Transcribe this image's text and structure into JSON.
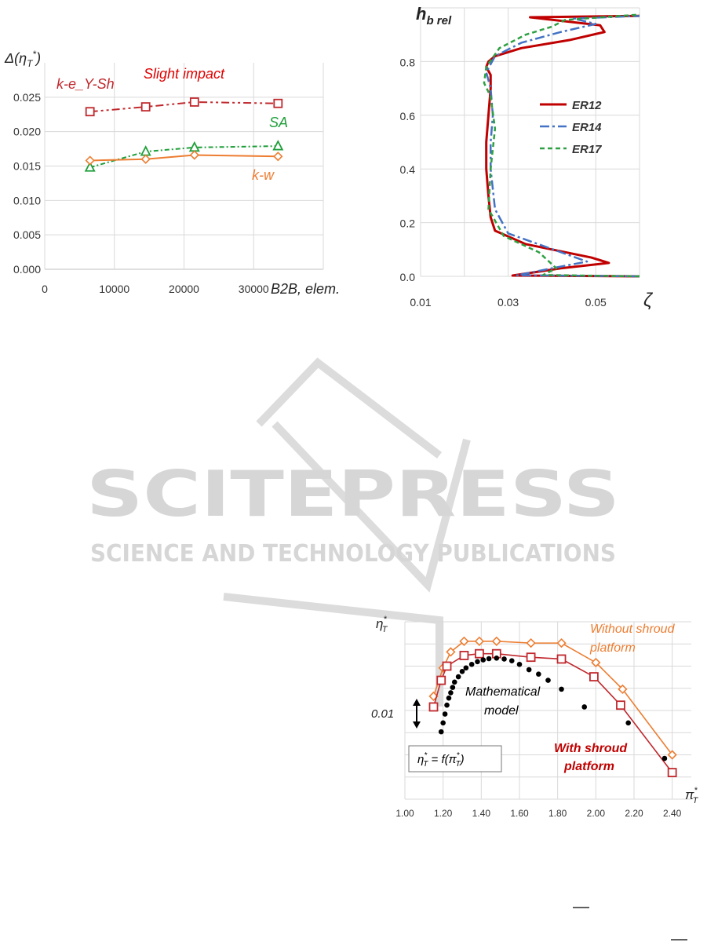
{
  "watermark": {
    "word": "SCITEPRESS",
    "tagline": "SCIENCE AND TECHNOLOGY PUBLICATIONS",
    "logo_icon": "book-icon"
  },
  "chart_data": [
    {
      "id": "mesh",
      "type": "line",
      "title": "",
      "ylabel": "Δ(η_T*)",
      "xlabel": "B2B, elem.",
      "xlim": [
        0,
        40000
      ],
      "ylim": [
        0,
        0.03
      ],
      "xticks": [
        "0",
        "10000",
        "20000",
        "30000"
      ],
      "yticks": [
        "0.000",
        "0.005",
        "0.010",
        "0.015",
        "0.020",
        "0.025"
      ],
      "grid": true,
      "series": [
        {
          "name": "k-e_Y-Sh",
          "color": "#c0282d",
          "dash": "10 4 3 4 3 4",
          "marker": "square",
          "x": [
            6500,
            14500,
            21500,
            33500
          ],
          "values": [
            0.0229,
            0.0236,
            0.0243,
            0.0241
          ]
        },
        {
          "name": "SA",
          "color": "#1f9e3a",
          "dash": "6 3 2 3",
          "marker": "triangle",
          "x": [
            6500,
            14500,
            21500,
            33500
          ],
          "values": [
            0.0148,
            0.0171,
            0.0177,
            0.0179
          ]
        },
        {
          "name": "k-w",
          "color": "#ed7d31",
          "dash": "",
          "marker": "diamond",
          "x": [
            6500,
            14500,
            21500,
            33500
          ],
          "values": [
            0.0158,
            0.016,
            0.0166,
            0.0164
          ]
        }
      ],
      "annotations": [
        {
          "text": "Slight impact",
          "color": "#e00000"
        },
        {
          "text": "k-e_Y-Sh",
          "color": "#c0282d"
        },
        {
          "text": "SA",
          "color": "#1f9e3a"
        },
        {
          "text": "k-w",
          "color": "#ed7d31"
        }
      ]
    },
    {
      "id": "profile",
      "type": "line",
      "title": "",
      "ylabel": "h_b rel",
      "xlabel": "ζ",
      "xlim": [
        0.01,
        0.06
      ],
      "ylim": [
        0,
        1
      ],
      "xticks": [
        "0.01",
        "0.03",
        "0.05"
      ],
      "yticks": [
        "0.0",
        "0.2",
        "0.4",
        "0.6",
        "0.8"
      ],
      "grid": true,
      "legend": "center-right",
      "series": [
        {
          "name": "ER12",
          "color": "#c00000",
          "dash": "",
          "x": [
            0.06,
            0.031,
            0.042,
            0.053,
            0.049,
            0.034,
            0.027,
            0.026,
            0.0255,
            0.025,
            0.025,
            0.0255,
            0.026,
            0.026,
            0.025,
            0.0255,
            0.027,
            0.033,
            0.044,
            0.052,
            0.051,
            0.035,
            0.06
          ],
          "y": [
            0.0,
            0.003,
            0.03,
            0.05,
            0.07,
            0.12,
            0.17,
            0.22,
            0.3,
            0.4,
            0.5,
            0.6,
            0.7,
            0.75,
            0.78,
            0.8,
            0.82,
            0.85,
            0.88,
            0.91,
            0.935,
            0.965,
            0.97
          ]
        },
        {
          "name": "ER14",
          "color": "#4472c4",
          "dash": "12 4 3 4",
          "x": [
            0.06,
            0.032,
            0.04,
            0.048,
            0.042,
            0.03,
            0.027,
            0.026,
            0.026,
            0.0265,
            0.026,
            0.025,
            0.027,
            0.033,
            0.042,
            0.05,
            0.045,
            0.06
          ],
          "y": [
            0.0,
            0.004,
            0.03,
            0.055,
            0.09,
            0.16,
            0.25,
            0.4,
            0.5,
            0.6,
            0.7,
            0.76,
            0.82,
            0.87,
            0.91,
            0.94,
            0.96,
            0.97
          ]
        },
        {
          "name": "ER17",
          "color": "#2ea043",
          "dash": "6 4",
          "x": [
            0.06,
            0.038,
            0.041,
            0.037,
            0.029,
            0.0255,
            0.026,
            0.027,
            0.026,
            0.0245,
            0.025,
            0.028,
            0.034,
            0.04,
            0.043,
            0.06
          ],
          "y": [
            0.0,
            0.005,
            0.03,
            0.09,
            0.15,
            0.25,
            0.4,
            0.55,
            0.67,
            0.72,
            0.78,
            0.85,
            0.9,
            0.93,
            0.955,
            0.975
          ]
        }
      ]
    },
    {
      "id": "efficiency",
      "type": "line",
      "title": "",
      "ylabel": "η_T*",
      "xlabel": "π_T*",
      "xlim": [
        1.0,
        2.5
      ],
      "ylim": [
        0,
        10
      ],
      "xticks": [
        "1.00",
        "1.20",
        "1.40",
        "1.60",
        "1.80",
        "2.00",
        "2.20",
        "2.40"
      ],
      "grid": true,
      "scale_bar_label": "0.01",
      "formula_box": "η_T* = f(π_T*)",
      "series": [
        {
          "name": "Without shroud platform",
          "color": "#ed7d31",
          "marker": "diamond",
          "x": [
            1.15,
            1.2,
            1.24,
            1.31,
            1.39,
            1.48,
            1.66,
            1.82,
            2.0,
            2.14,
            2.4
          ],
          "values": [
            5.8,
            7.4,
            8.3,
            8.9,
            8.9,
            8.9,
            8.8,
            8.8,
            7.7,
            6.2,
            2.5
          ]
        },
        {
          "name": "With shroud platform",
          "color": "#c0282d",
          "marker": "square",
          "x": [
            1.15,
            1.19,
            1.22,
            1.31,
            1.39,
            1.48,
            1.66,
            1.82,
            1.99,
            2.13,
            2.4
          ],
          "values": [
            5.2,
            6.7,
            7.5,
            8.1,
            8.2,
            8.2,
            8.0,
            7.9,
            6.9,
            5.3,
            1.5
          ]
        },
        {
          "name": "Mathematical model",
          "color": "#000000",
          "marker": "dot",
          "x": [
            1.19,
            1.2,
            1.21,
            1.22,
            1.23,
            1.24,
            1.25,
            1.26,
            1.28,
            1.3,
            1.32,
            1.35,
            1.38,
            1.41,
            1.44,
            1.48,
            1.52,
            1.56,
            1.6,
            1.65,
            1.7,
            1.75,
            1.82,
            1.94,
            2.17,
            2.36
          ],
          "values": [
            3.8,
            4.3,
            4.8,
            5.3,
            5.7,
            6.0,
            6.3,
            6.6,
            6.9,
            7.2,
            7.4,
            7.6,
            7.75,
            7.85,
            7.92,
            7.95,
            7.9,
            7.8,
            7.6,
            7.3,
            7.05,
            6.7,
            6.2,
            5.2,
            4.3,
            2.3
          ]
        }
      ],
      "annotations": [
        {
          "text": "Without shroud",
          "color": "#ed7d31"
        },
        {
          "text": "platform",
          "color": "#ed7d31"
        },
        {
          "text": "With shroud",
          "color": "#c00000"
        },
        {
          "text": "platform",
          "color": "#c00000"
        },
        {
          "text": "Mathematical",
          "color": "#000000"
        },
        {
          "text": "model",
          "color": "#000000"
        }
      ]
    }
  ]
}
